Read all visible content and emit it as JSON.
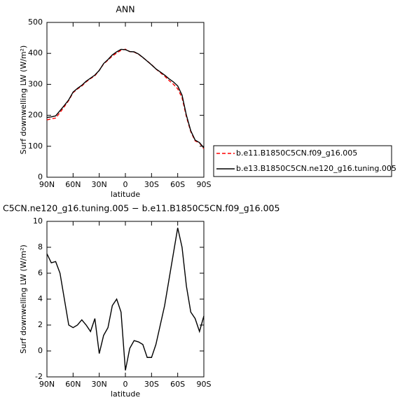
{
  "chart_data": [
    {
      "type": "line",
      "title": "ANN",
      "x_label": "latitude",
      "y_label": "Surf downwelling LW (W/m²)",
      "x": [
        90,
        85,
        80,
        75,
        70,
        65,
        60,
        55,
        50,
        45,
        40,
        35,
        30,
        25,
        20,
        15,
        10,
        5,
        0,
        -5,
        -10,
        -15,
        -20,
        -25,
        -30,
        -35,
        -40,
        -45,
        -50,
        -55,
        -60,
        -65,
        -70,
        -75,
        -80,
        -85,
        -90
      ],
      "xlim": [
        90,
        -90
      ],
      "xticks": [
        {
          "value": 90,
          "label": "90N"
        },
        {
          "value": 60,
          "label": "60N"
        },
        {
          "value": 30,
          "label": "30N"
        },
        0,
        {
          "value": -30,
          "label": "30S"
        },
        {
          "value": -60,
          "label": "60S"
        },
        {
          "value": -90,
          "label": "90S"
        }
      ],
      "ylim": [
        0,
        500
      ],
      "yticks": [
        0,
        100,
        200,
        300,
        400,
        500
      ],
      "legend": "right",
      "series": [
        {
          "name": "b.e11.B1850C5CN.f09_g16.005",
          "color": "#ff0000",
          "line_style": "dashed",
          "values": [
            185.5,
            188.2,
            191.1,
            209,
            228,
            248,
            273.2,
            285,
            294.6,
            308,
            318.5,
            327.5,
            345.2,
            365.8,
            378.2,
            391.5,
            401,
            410,
            413.5,
            405.8,
            404.2,
            397.3,
            386.5,
            375.5,
            363.5,
            349.5,
            338,
            326.5,
            312.5,
            300.5,
            285.5,
            257,
            195,
            147,
            117.5,
            110.5,
            92.3
          ]
        },
        {
          "name": "b.e13.B1850C5CN.ne120_g16.tuning.005",
          "color": "#000000",
          "line_style": "solid",
          "values": [
            193,
            195,
            198,
            215,
            232,
            250,
            275,
            287,
            297,
            310,
            320,
            330,
            345,
            367,
            380,
            395,
            405,
            413,
            412,
            406,
            405,
            398,
            387,
            375,
            363,
            350,
            340,
            330,
            318,
            308,
            295,
            265,
            200,
            150,
            120,
            112,
            95
          ]
        }
      ]
    },
    {
      "type": "line",
      "title": "C5CN.ne120_g16.tuning.005 − b.e11.B1850C5CN.f09_g16.005",
      "x_label": "latitude",
      "y_label": "Surf downwelling LW (W/m²)",
      "x": [
        90,
        85,
        80,
        75,
        70,
        65,
        60,
        55,
        50,
        45,
        40,
        35,
        30,
        25,
        20,
        15,
        10,
        5,
        0,
        -5,
        -10,
        -15,
        -20,
        -25,
        -30,
        -35,
        -40,
        -45,
        -50,
        -55,
        -60,
        -65,
        -70,
        -75,
        -80,
        -85,
        -90
      ],
      "xlim": [
        90,
        -90
      ],
      "xticks": [
        {
          "value": 90,
          "label": "90N"
        },
        {
          "value": 60,
          "label": "60N"
        },
        {
          "value": 30,
          "label": "30N"
        },
        0,
        {
          "value": -30,
          "label": "30S"
        },
        {
          "value": -60,
          "label": "60S"
        },
        {
          "value": -90,
          "label": "90S"
        }
      ],
      "ylim": [
        -2,
        10
      ],
      "yticks": [
        -2,
        0,
        2,
        4,
        6,
        8,
        10
      ],
      "series": [
        {
          "color": "#000000",
          "line_style": "solid",
          "values": [
            7.5,
            6.8,
            6.9,
            6,
            4,
            2,
            1.8,
            2,
            2.4,
            2,
            1.5,
            2.5,
            -0.2,
            1.2,
            1.8,
            3.5,
            4,
            3,
            -1.5,
            0.2,
            0.8,
            0.7,
            0.5,
            -0.5,
            -0.5,
            0.5,
            2,
            3.5,
            5.5,
            7.5,
            9.5,
            8,
            5,
            3,
            2.5,
            1.5,
            2.7
          ]
        }
      ]
    }
  ]
}
